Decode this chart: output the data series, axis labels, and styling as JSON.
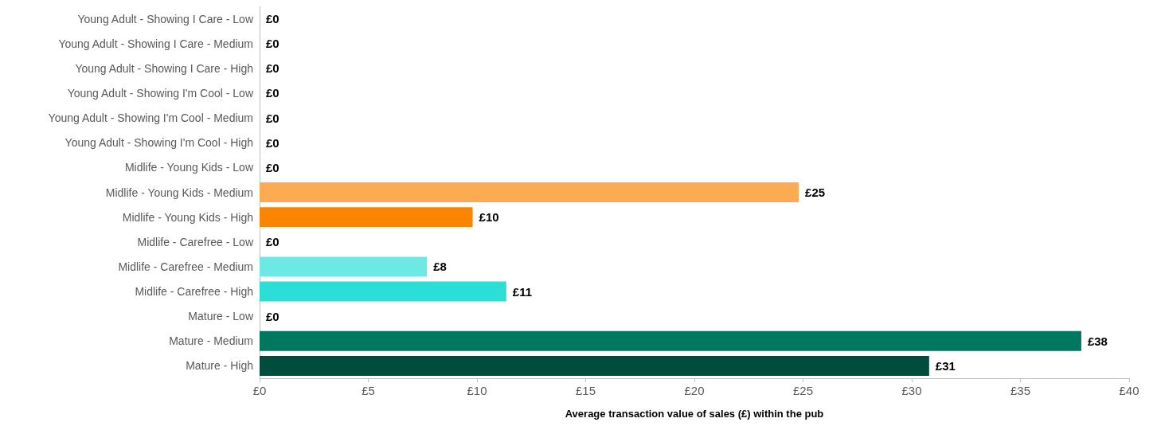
{
  "chart_data": {
    "type": "bar",
    "orientation": "horizontal",
    "xlabel": "Average transaction value of sales (£) within the pub",
    "categories": [
      "Young Adult - Showing I Care - Low",
      "Young Adult - Showing I Care - Medium",
      "Young Adult - Showing I Care - High",
      "Young Adult - Showing I'm Cool - Low",
      "Young Adult - Showing I'm Cool - Medium",
      "Young Adult - Showing I'm Cool - High",
      "Midlife - Young Kids - Low",
      "Midlife - Young Kids - Medium",
      "Midlife - Young Kids - High",
      "Midlife - Carefree - Low",
      "Midlife - Carefree - Medium",
      "Midlife - Carefree - High",
      "Mature - Low",
      "Mature - Medium",
      "Mature - High"
    ],
    "values": [
      0,
      0,
      0,
      0,
      0,
      0,
      0,
      24.8,
      9.8,
      0,
      7.7,
      11.35,
      0,
      37.8,
      30.8
    ],
    "value_labels": [
      "£0",
      "£0",
      "£0",
      "£0",
      "£0",
      "£0",
      "£0",
      "£25",
      "£10",
      "£0",
      "£8",
      "£11",
      "£0",
      "£38",
      "£31"
    ],
    "colors": [
      "#fdab52",
      "#fdab52",
      "#fdab52",
      "#fdab52",
      "#fdab52",
      "#fdab52",
      "#fdab52",
      "#fdab52",
      "#fb8500",
      "#6ce9e2",
      "#6ce9e2",
      "#2cdfd6",
      "#00775f",
      "#00775f",
      "#004d3e"
    ],
    "xlim": [
      0,
      40
    ],
    "xticks": [
      {
        "value": 0,
        "label": "£0"
      },
      {
        "value": 5,
        "label": "£5"
      },
      {
        "value": 10,
        "label": "£10"
      },
      {
        "value": 15,
        "label": "£15"
      },
      {
        "value": 20,
        "label": "£20"
      },
      {
        "value": 25,
        "label": "£25"
      },
      {
        "value": 30,
        "label": "£30"
      },
      {
        "value": 35,
        "label": "£35"
      },
      {
        "value": 40,
        "label": "£40"
      }
    ],
    "grid": false
  }
}
